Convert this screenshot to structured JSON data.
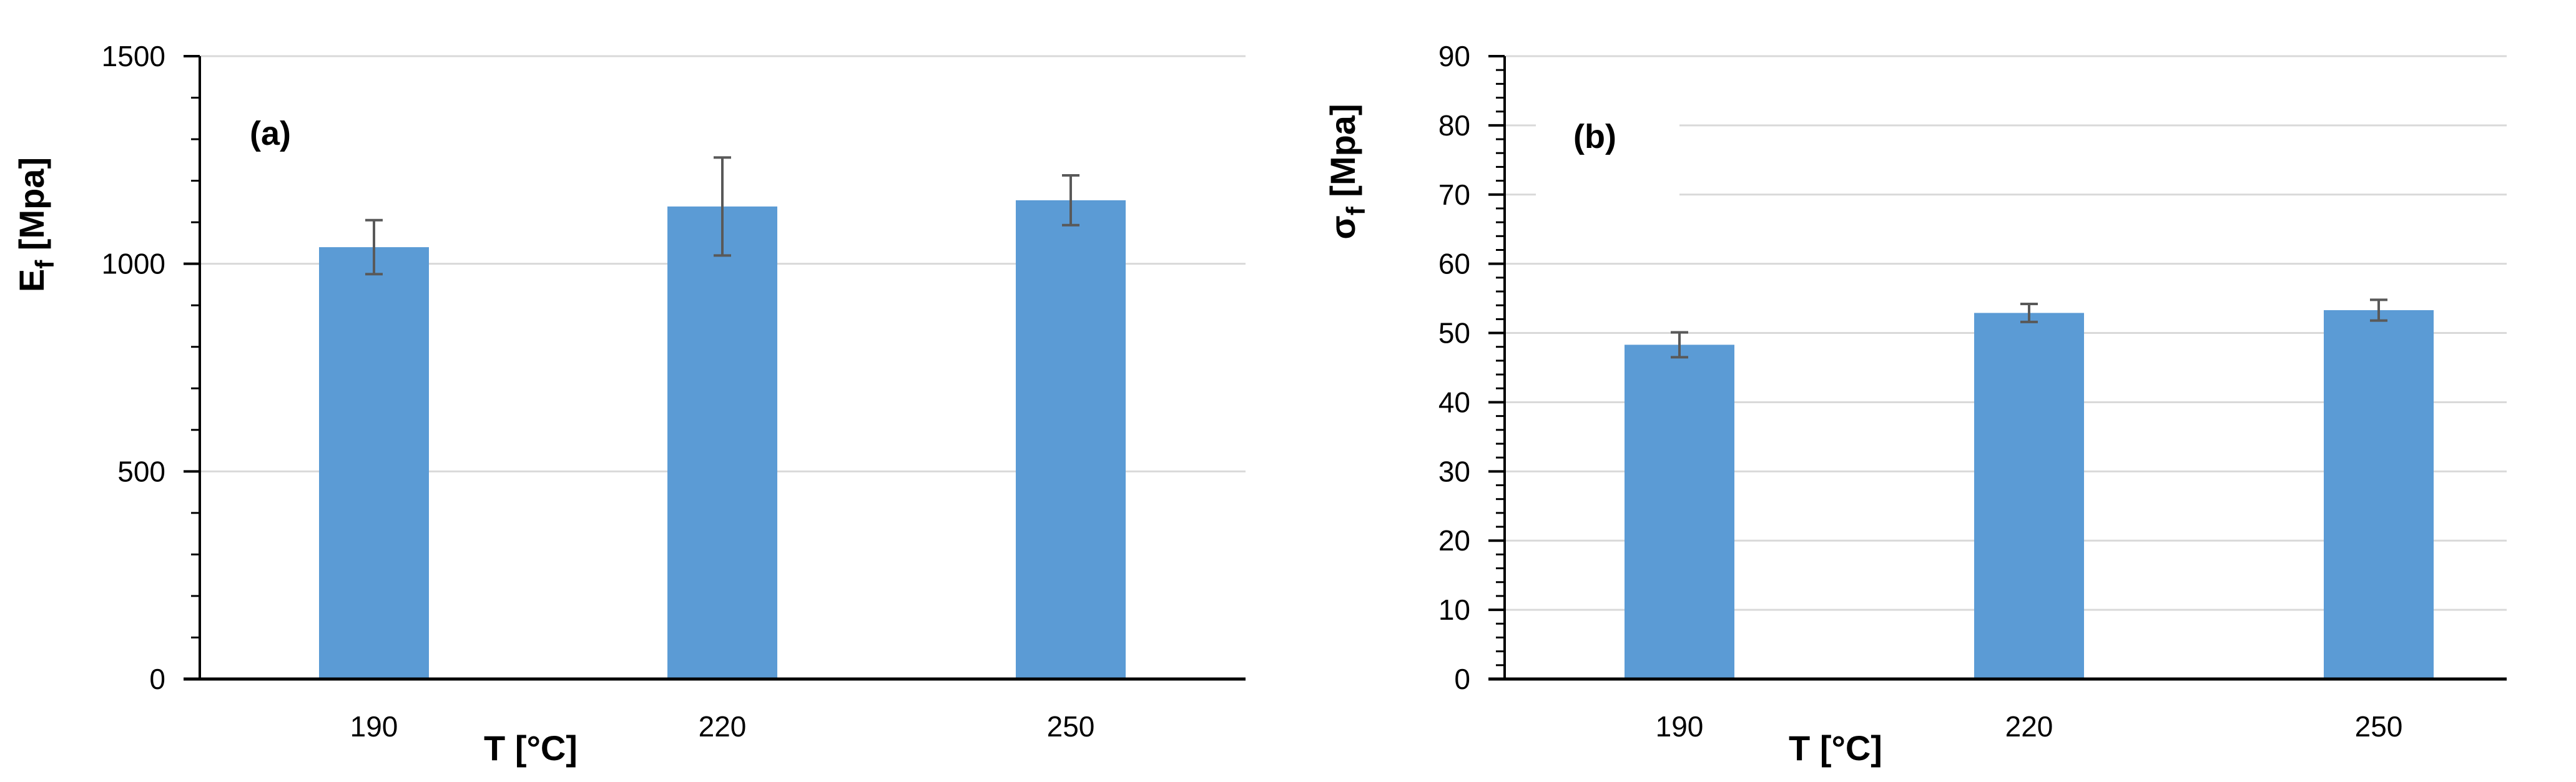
{
  "chart_data": [
    {
      "type": "bar",
      "panel_label": "(a)",
      "categories": [
        "190",
        "220",
        "250"
      ],
      "values": [
        1040,
        1138,
        1153
      ],
      "errors": [
        65,
        118,
        60
      ],
      "xlabel": "T [°C]",
      "ylabel_main": "E",
      "ylabel_sub": "f",
      "ylabel_rest": " [Mpa]",
      "ylim": [
        0,
        1500
      ],
      "yticks": [
        0,
        500,
        1000,
        1500
      ],
      "minor_step": 100,
      "grid": true,
      "bar_color": "#5B9BD5"
    },
    {
      "type": "bar",
      "panel_label": "(b)",
      "categories": [
        "190",
        "220",
        "250"
      ],
      "values": [
        48.3,
        52.9,
        53.3
      ],
      "errors": [
        1.8,
        1.3,
        1.5
      ],
      "xlabel": "T [°C]",
      "ylabel_main": "σ",
      "ylabel_sub": "f",
      "ylabel_rest": " [Mpa]",
      "ylim": [
        0,
        90
      ],
      "yticks": [
        0,
        10,
        20,
        30,
        40,
        50,
        60,
        70,
        80,
        90
      ],
      "minor_step": 2,
      "grid": true,
      "bar_color": "#5B9BD5"
    }
  ]
}
